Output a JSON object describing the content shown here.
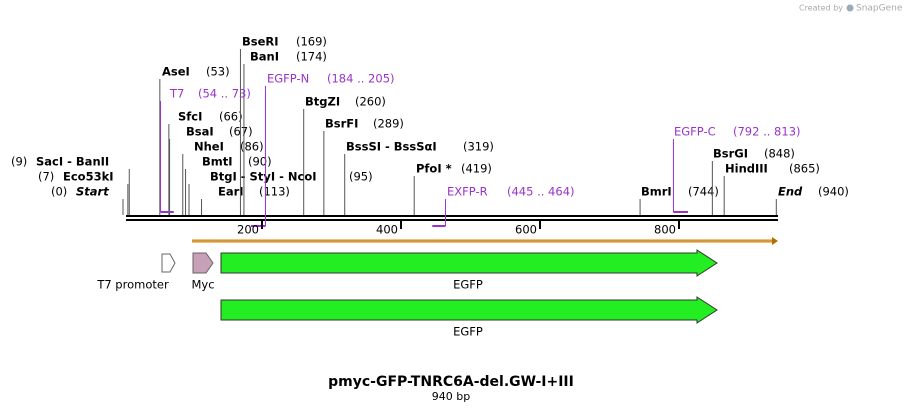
{
  "header": {
    "created_by": "Created by",
    "brand": "SnapGene"
  },
  "sites": [
    {
      "name": "SacI - BanII",
      "pos": {
        "value": 9,
        "label": "(9)"
      }
    },
    {
      "name": "Eco53kI",
      "pos": {
        "value": 7,
        "label": "(7)"
      }
    },
    {
      "name": "Start",
      "pos": {
        "value": 0,
        "label": "(0)"
      }
    },
    {
      "name": "AseI",
      "pos": {
        "value": 53,
        "label": "(53)"
      }
    },
    {
      "name": "SfcI",
      "pos": {
        "value": 66,
        "label": "(66)"
      }
    },
    {
      "name": "BsaI",
      "pos": {
        "value": 67,
        "label": "(67)"
      }
    },
    {
      "name": "NheI",
      "pos": {
        "value": 86,
        "label": "(86)"
      }
    },
    {
      "name": "BmtI",
      "pos": {
        "value": 90,
        "label": "(90)"
      }
    },
    {
      "name": "BtgI - StyI - NcoI",
      "pos": {
        "value": 95,
        "label": "(95)"
      }
    },
    {
      "name": "EarI",
      "pos": {
        "value": 113,
        "label": "(113)"
      }
    },
    {
      "name": "BseRI",
      "pos": {
        "value": 169,
        "label": "(169)"
      }
    },
    {
      "name": "BanI",
      "pos": {
        "value": 174,
        "label": "(174)"
      }
    },
    {
      "name": "BtgZI",
      "pos": {
        "value": 260,
        "label": "(260)"
      }
    },
    {
      "name": "BsrFI",
      "pos": {
        "value": 289,
        "label": "(289)"
      }
    },
    {
      "name": "BssSI - BssSαI",
      "pos": {
        "value": 319,
        "label": "(319)"
      }
    },
    {
      "name": "PfoI *",
      "pos": {
        "value": 419,
        "label": "(419)"
      }
    },
    {
      "name": "BmrI",
      "pos": {
        "value": 744,
        "label": "(744)"
      }
    },
    {
      "name": "BsrGI",
      "pos": {
        "value": 848,
        "label": "(848)"
      }
    },
    {
      "name": "HindIII",
      "pos": {
        "value": 865,
        "label": "(865)"
      }
    },
    {
      "name": "End",
      "pos": {
        "value": 940,
        "label": "(940)"
      }
    }
  ],
  "primers": [
    {
      "name": "T7",
      "range": {
        "start": 54,
        "end": 73,
        "label": "(54 .. 73)"
      }
    },
    {
      "name": "EGFP-N",
      "range": {
        "start": 184,
        "end": 205,
        "label": "(184 .. 205)"
      }
    },
    {
      "name": "EXFP-R",
      "range": {
        "start": 445,
        "end": 464,
        "label": "(445 .. 464)"
      }
    },
    {
      "name": "EGFP-C",
      "range": {
        "start": 792,
        "end": 813,
        "label": "(792 .. 813)"
      }
    }
  ],
  "ticks": [
    200,
    400,
    600,
    800
  ],
  "features": [
    "T7 promoter",
    "Myc",
    "EGFP",
    "EGFP"
  ],
  "title": "pmyc-GFP-TNRC6A-del.GW-I+III",
  "length": "940 bp"
}
